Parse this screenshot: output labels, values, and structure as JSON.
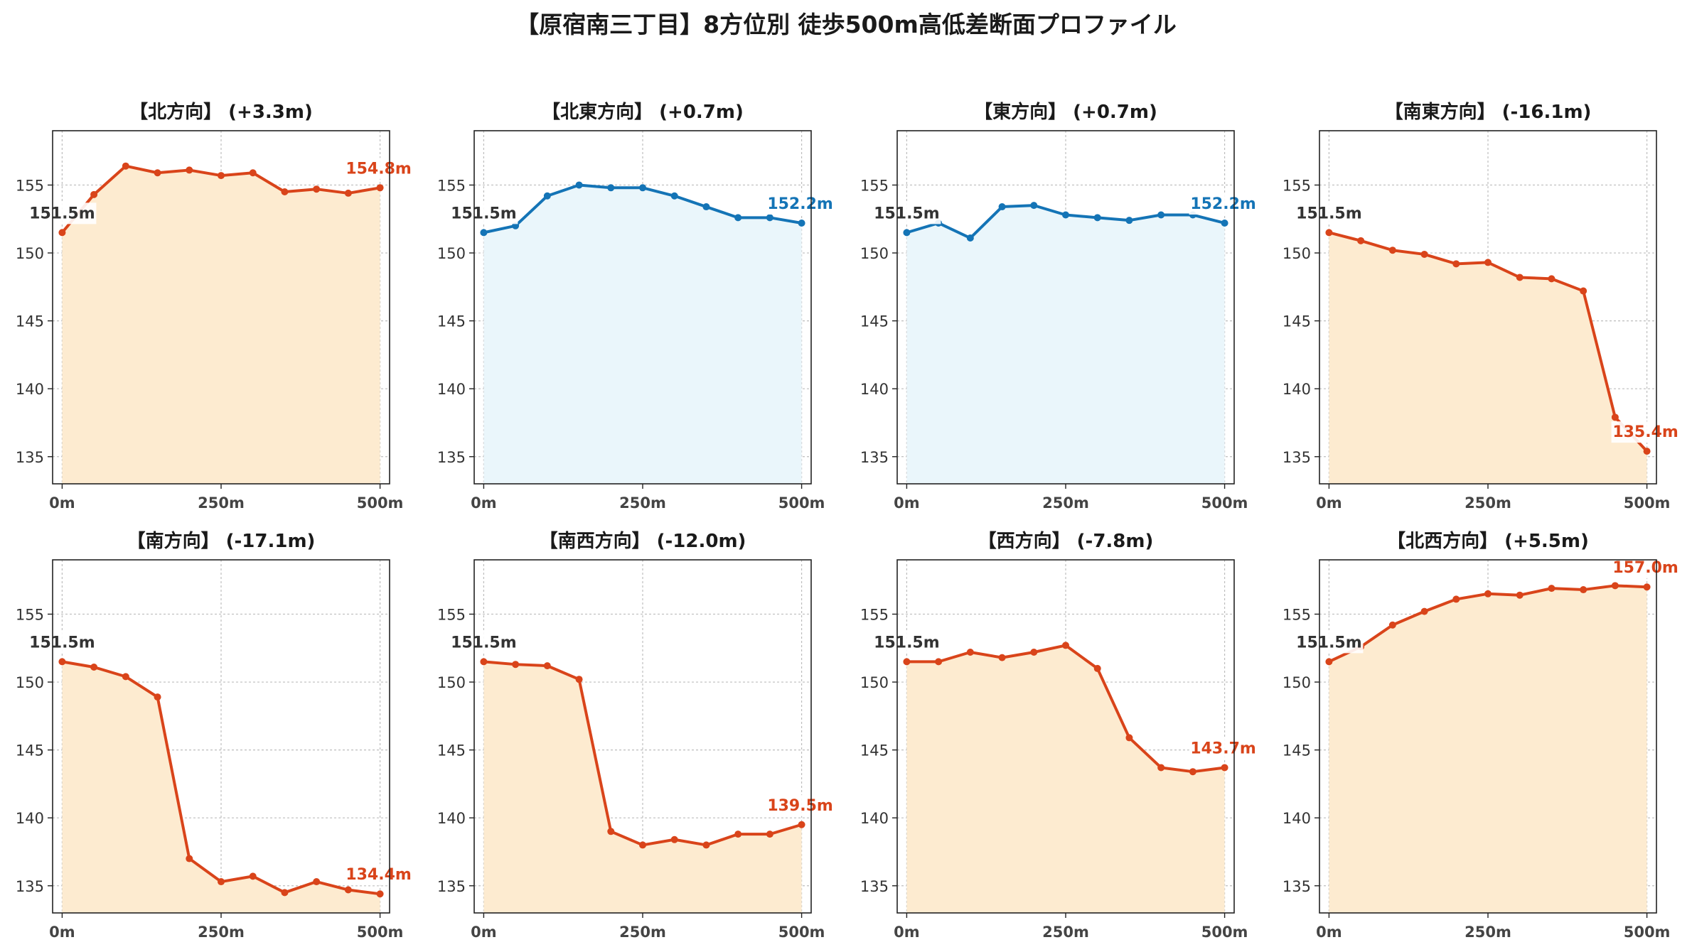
{
  "title": "【原宿南三丁目】8方位別 徒歩500m高低差断面プロファイル",
  "colors": {
    "up_line": "#d9441a",
    "up_fill": "#fdebd0",
    "flat_line": "#1474b6",
    "flat_fill": "#eaf6fb",
    "axis": "#222222",
    "grid": "#bdbdbd",
    "start_label": "#333333"
  },
  "chart_data": [
    {
      "type": "area",
      "title": "【北方向】 (+3.3m)",
      "style": "orange",
      "x": [
        0,
        50,
        100,
        150,
        200,
        250,
        300,
        350,
        400,
        450,
        500
      ],
      "y": [
        151.5,
        154.3,
        156.4,
        155.9,
        156.1,
        155.7,
        155.9,
        154.5,
        154.7,
        154.4,
        154.8
      ],
      "start_label": "151.5m",
      "end_label": "154.8m",
      "xticks": [
        "0m",
        "250m",
        "500m"
      ],
      "yticks": [
        135,
        140,
        145,
        150,
        155
      ],
      "xlim": [
        -15,
        515
      ],
      "ylim": [
        133,
        159
      ],
      "grid": true
    },
    {
      "type": "area",
      "title": "【北東方向】 (+0.7m)",
      "style": "blue",
      "x": [
        0,
        50,
        100,
        150,
        200,
        250,
        300,
        350,
        400,
        450,
        500
      ],
      "y": [
        151.5,
        152.0,
        154.2,
        155.0,
        154.8,
        154.8,
        154.2,
        153.4,
        152.6,
        152.6,
        152.2
      ],
      "start_label": "151.5m",
      "end_label": "152.2m",
      "xticks": [
        "0m",
        "250m",
        "500m"
      ],
      "yticks": [
        135,
        140,
        145,
        150,
        155
      ],
      "xlim": [
        -15,
        515
      ],
      "ylim": [
        133,
        159
      ],
      "grid": true
    },
    {
      "type": "area",
      "title": "【東方向】 (+0.7m)",
      "style": "blue",
      "x": [
        0,
        50,
        100,
        150,
        200,
        250,
        300,
        350,
        400,
        450,
        500
      ],
      "y": [
        151.5,
        152.2,
        151.1,
        153.4,
        153.5,
        152.8,
        152.6,
        152.4,
        152.8,
        152.8,
        152.2
      ],
      "start_label": "151.5m",
      "end_label": "152.2m",
      "xticks": [
        "0m",
        "250m",
        "500m"
      ],
      "yticks": [
        135,
        140,
        145,
        150,
        155
      ],
      "xlim": [
        -15,
        515
      ],
      "ylim": [
        133,
        159
      ],
      "grid": true
    },
    {
      "type": "area",
      "title": "【南東方向】 (-16.1m)",
      "style": "orange",
      "x": [
        0,
        50,
        100,
        150,
        200,
        250,
        300,
        350,
        400,
        450,
        500
      ],
      "y": [
        151.5,
        150.9,
        150.2,
        149.9,
        149.2,
        149.3,
        148.2,
        148.1,
        147.2,
        137.9,
        135.4
      ],
      "start_label": "151.5m",
      "end_label": "135.4m",
      "xticks": [
        "0m",
        "250m",
        "500m"
      ],
      "yticks": [
        135,
        140,
        145,
        150,
        155
      ],
      "xlim": [
        -15,
        515
      ],
      "ylim": [
        133,
        159
      ],
      "grid": true
    },
    {
      "type": "area",
      "title": "【南方向】 (-17.1m)",
      "style": "orange",
      "x": [
        0,
        50,
        100,
        150,
        200,
        250,
        300,
        350,
        400,
        450,
        500
      ],
      "y": [
        151.5,
        151.1,
        150.4,
        148.9,
        137.0,
        135.3,
        135.7,
        134.5,
        135.3,
        134.7,
        134.4
      ],
      "start_label": "151.5m",
      "end_label": "134.4m",
      "xticks": [
        "0m",
        "250m",
        "500m"
      ],
      "yticks": [
        135,
        140,
        145,
        150,
        155
      ],
      "xlim": [
        -15,
        515
      ],
      "ylim": [
        133,
        159
      ],
      "grid": true
    },
    {
      "type": "area",
      "title": "【南西方向】 (-12.0m)",
      "style": "orange",
      "x": [
        0,
        50,
        100,
        150,
        200,
        250,
        300,
        350,
        400,
        450,
        500
      ],
      "y": [
        151.5,
        151.3,
        151.2,
        150.2,
        139.0,
        138.0,
        138.4,
        138.0,
        138.8,
        138.8,
        139.5
      ],
      "start_label": "151.5m",
      "end_label": "139.5m",
      "xticks": [
        "0m",
        "250m",
        "500m"
      ],
      "yticks": [
        135,
        140,
        145,
        150,
        155
      ],
      "xlim": [
        -15,
        515
      ],
      "ylim": [
        133,
        159
      ],
      "grid": true
    },
    {
      "type": "area",
      "title": "【西方向】 (-7.8m)",
      "style": "orange",
      "x": [
        0,
        50,
        100,
        150,
        200,
        250,
        300,
        350,
        400,
        450,
        500
      ],
      "y": [
        151.5,
        151.5,
        152.2,
        151.8,
        152.2,
        152.7,
        151.0,
        145.9,
        143.7,
        143.4,
        143.7
      ],
      "start_label": "151.5m",
      "end_label": "143.7m",
      "xticks": [
        "0m",
        "250m",
        "500m"
      ],
      "yticks": [
        135,
        140,
        145,
        150,
        155
      ],
      "xlim": [
        -15,
        515
      ],
      "ylim": [
        133,
        159
      ],
      "grid": true
    },
    {
      "type": "area",
      "title": "【北西方向】 (+5.5m)",
      "style": "orange",
      "x": [
        0,
        50,
        100,
        150,
        200,
        250,
        300,
        350,
        400,
        450,
        500
      ],
      "y": [
        151.5,
        152.6,
        154.2,
        155.2,
        156.1,
        156.5,
        156.4,
        156.9,
        156.8,
        157.1,
        157.0
      ],
      "start_label": "151.5m",
      "end_label": "157.0m",
      "xticks": [
        "0m",
        "250m",
        "500m"
      ],
      "yticks": [
        135,
        140,
        145,
        150,
        155
      ],
      "xlim": [
        -15,
        515
      ],
      "ylim": [
        133,
        159
      ],
      "grid": true
    }
  ]
}
